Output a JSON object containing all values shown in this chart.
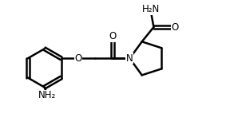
{
  "background_color": "#ffffff",
  "line_color": "#000000",
  "line_width": 1.8,
  "font_size": 8.5,
  "figsize": [
    3.03,
    1.62
  ],
  "dpi": 100,
  "xlim": [
    0,
    10
  ],
  "ylim": [
    0,
    5.4
  ]
}
